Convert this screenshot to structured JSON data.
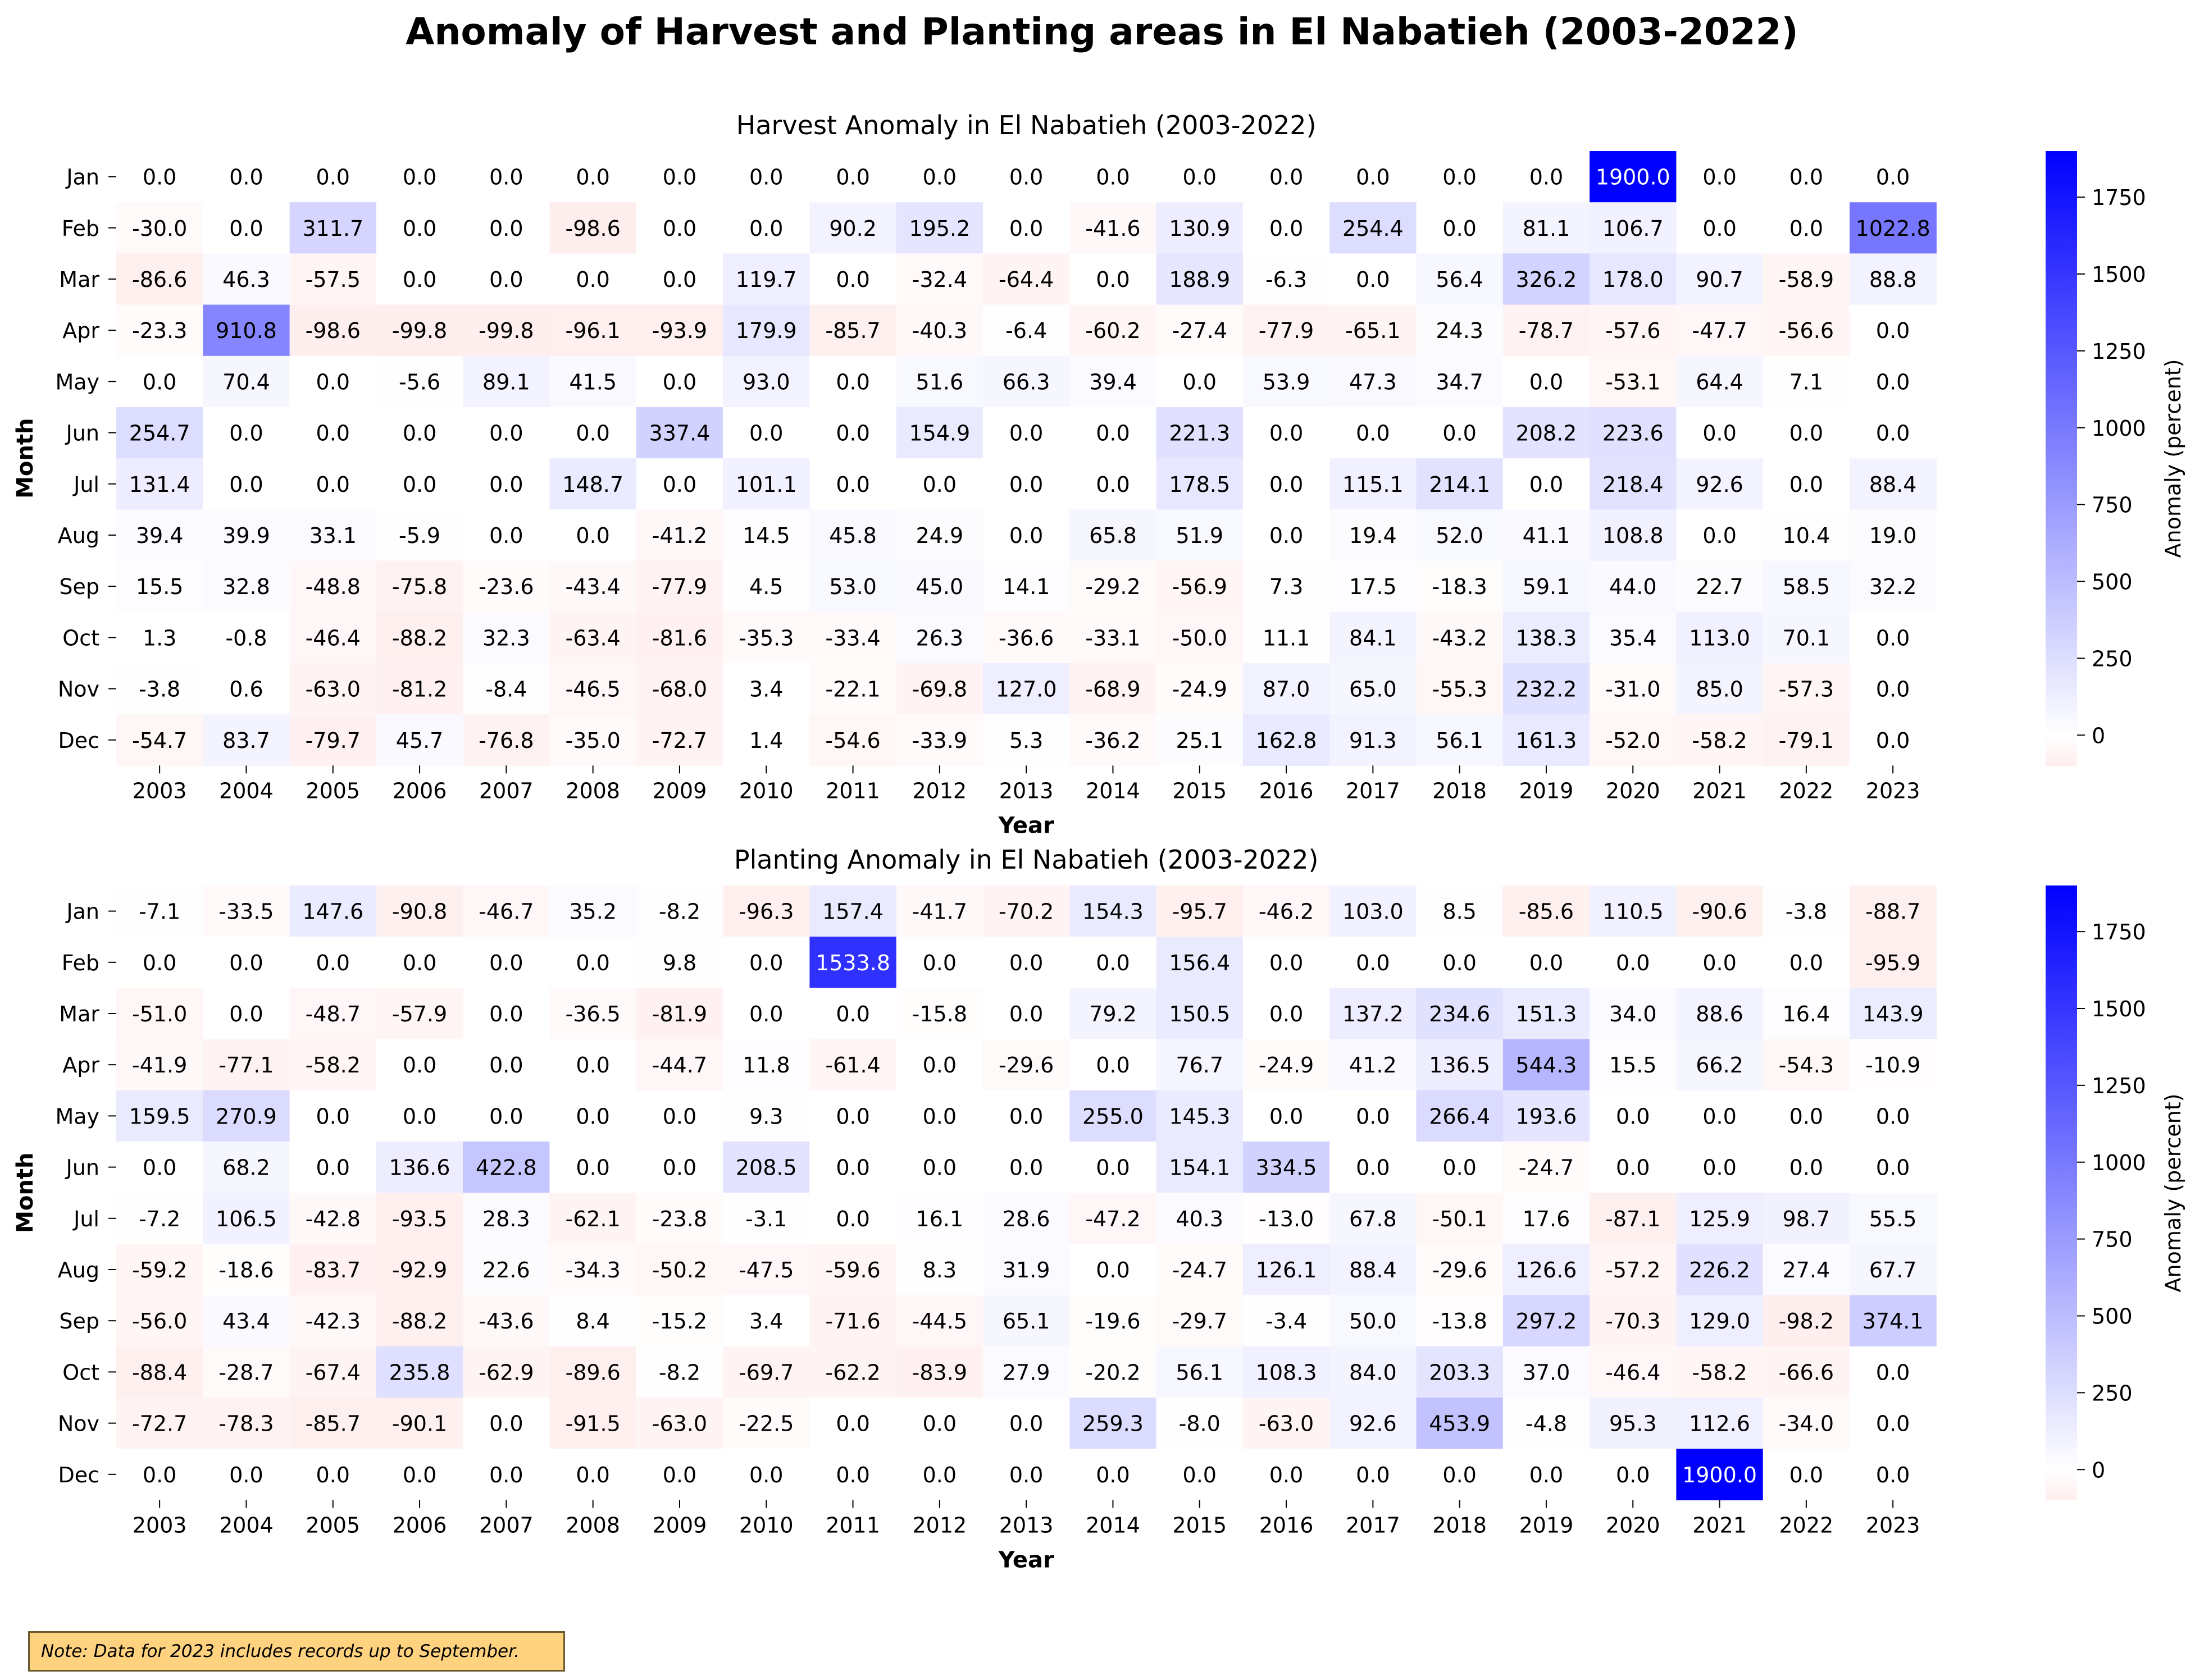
{
  "title": "Anomaly of Harvest and Planting areas in El Nabatieh (2003-2022)",
  "note": "Note: Data for 2023 includes records up to September.",
  "colors": {
    "negative": "#ffeeee",
    "zero": "#ffffff",
    "positive": "#0000ff"
  },
  "chart_data": [
    {
      "type": "heatmap",
      "title": "Harvest Anomaly in El Nabatieh (2003-2022)",
      "xlabel": "Year",
      "ylabel": "Month",
      "colorbar_label": "Anomaly (percent)",
      "colorbar_ticks": [
        "0",
        "250",
        "500",
        "750",
        "1000",
        "1250",
        "1500",
        "1750"
      ],
      "clim": [
        -100,
        1900
      ],
      "x": [
        "2003",
        "2004",
        "2005",
        "2006",
        "2007",
        "2008",
        "2009",
        "2010",
        "2011",
        "2012",
        "2013",
        "2014",
        "2015",
        "2016",
        "2017",
        "2018",
        "2019",
        "2020",
        "2021",
        "2022",
        "2023"
      ],
      "y": [
        "Jan",
        "Feb",
        "Mar",
        "Apr",
        "May",
        "Jun",
        "Jul",
        "Aug",
        "Sep",
        "Oct",
        "Nov",
        "Dec"
      ],
      "values": [
        [
          0.0,
          0.0,
          0.0,
          0.0,
          0.0,
          0.0,
          0.0,
          0.0,
          0.0,
          0.0,
          0.0,
          0.0,
          0.0,
          0.0,
          0.0,
          0.0,
          0.0,
          1900.0,
          0.0,
          0.0,
          0.0
        ],
        [
          -30.0,
          0.0,
          311.7,
          0.0,
          0.0,
          -98.6,
          0.0,
          0.0,
          90.2,
          195.2,
          0.0,
          -41.6,
          130.9,
          0.0,
          254.4,
          0.0,
          81.1,
          106.7,
          0.0,
          0.0,
          1022.8
        ],
        [
          -86.6,
          46.3,
          -57.5,
          0.0,
          0.0,
          0.0,
          0.0,
          119.7,
          0.0,
          -32.4,
          -64.4,
          0.0,
          188.9,
          -6.3,
          0.0,
          56.4,
          326.2,
          178.0,
          90.7,
          -58.9,
          88.8
        ],
        [
          -23.3,
          910.8,
          -98.6,
          -99.8,
          -99.8,
          -96.1,
          -93.9,
          179.9,
          -85.7,
          -40.3,
          -6.4,
          -60.2,
          -27.4,
          -77.9,
          -65.1,
          24.3,
          -78.7,
          -57.6,
          -47.7,
          -56.6,
          0.0
        ],
        [
          0.0,
          70.4,
          0.0,
          -5.6,
          89.1,
          41.5,
          0.0,
          93.0,
          0.0,
          51.6,
          66.3,
          39.4,
          0.0,
          53.9,
          47.3,
          34.7,
          0.0,
          -53.1,
          64.4,
          7.1,
          0.0
        ],
        [
          254.7,
          0.0,
          0.0,
          0.0,
          0.0,
          0.0,
          337.4,
          0.0,
          0.0,
          154.9,
          0.0,
          0.0,
          221.3,
          0.0,
          0.0,
          0.0,
          208.2,
          223.6,
          0.0,
          0.0,
          0.0
        ],
        [
          131.4,
          0.0,
          0.0,
          0.0,
          0.0,
          148.7,
          0.0,
          101.1,
          0.0,
          0.0,
          0.0,
          0.0,
          178.5,
          0.0,
          115.1,
          214.1,
          0.0,
          218.4,
          92.6,
          0.0,
          88.4
        ],
        [
          39.4,
          39.9,
          33.1,
          -5.9,
          0.0,
          0.0,
          -41.2,
          14.5,
          45.8,
          24.9,
          0.0,
          65.8,
          51.9,
          0.0,
          19.4,
          52.0,
          41.1,
          108.8,
          0.0,
          10.4,
          19.0
        ],
        [
          15.5,
          32.8,
          -48.8,
          -75.8,
          -23.6,
          -43.4,
          -77.9,
          4.5,
          53.0,
          45.0,
          14.1,
          -29.2,
          -56.9,
          7.3,
          17.5,
          -18.3,
          59.1,
          44.0,
          22.7,
          58.5,
          32.2
        ],
        [
          1.3,
          -0.8,
          -46.4,
          -88.2,
          32.3,
          -63.4,
          -81.6,
          -35.3,
          -33.4,
          26.3,
          -36.6,
          -33.1,
          -50.0,
          11.1,
          84.1,
          -43.2,
          138.3,
          35.4,
          113.0,
          70.1,
          0.0
        ],
        [
          -3.8,
          0.6,
          -63.0,
          -81.2,
          -8.4,
          -46.5,
          -68.0,
          3.4,
          -22.1,
          -69.8,
          127.0,
          -68.9,
          -24.9,
          87.0,
          65.0,
          -55.3,
          232.2,
          -31.0,
          85.0,
          -57.3,
          0.0
        ],
        [
          -54.7,
          83.7,
          -79.7,
          45.7,
          -76.8,
          -35.0,
          -72.7,
          1.4,
          -54.6,
          -33.9,
          5.3,
          -36.2,
          25.1,
          162.8,
          91.3,
          56.1,
          161.3,
          -52.0,
          -58.2,
          -79.1,
          0.0
        ]
      ]
    },
    {
      "type": "heatmap",
      "title": "Planting Anomaly in El Nabatieh (2003-2022)",
      "xlabel": "Year",
      "ylabel": "Month",
      "colorbar_label": "Anomaly (percent)",
      "colorbar_ticks": [
        "0",
        "250",
        "500",
        "750",
        "1000",
        "1250",
        "1500",
        "1750"
      ],
      "clim": [
        -100,
        1900
      ],
      "x": [
        "2003",
        "2004",
        "2005",
        "2006",
        "2007",
        "2008",
        "2009",
        "2010",
        "2011",
        "2012",
        "2013",
        "2014",
        "2015",
        "2016",
        "2017",
        "2018",
        "2019",
        "2020",
        "2021",
        "2022",
        "2023"
      ],
      "y": [
        "Jan",
        "Feb",
        "Mar",
        "Apr",
        "May",
        "Jun",
        "Jul",
        "Aug",
        "Sep",
        "Oct",
        "Nov",
        "Dec"
      ],
      "values": [
        [
          -7.1,
          -33.5,
          147.6,
          -90.8,
          -46.7,
          35.2,
          -8.2,
          -96.3,
          157.4,
          -41.7,
          -70.2,
          154.3,
          -95.7,
          -46.2,
          103.0,
          8.5,
          -85.6,
          110.5,
          -90.6,
          -3.8,
          -88.7
        ],
        [
          0.0,
          0.0,
          0.0,
          0.0,
          0.0,
          0.0,
          9.8,
          0.0,
          1533.8,
          0.0,
          0.0,
          0.0,
          156.4,
          0.0,
          0.0,
          0.0,
          0.0,
          0.0,
          0.0,
          0.0,
          -95.9
        ],
        [
          -51.0,
          0.0,
          -48.7,
          -57.9,
          0.0,
          -36.5,
          -81.9,
          0.0,
          0.0,
          -15.8,
          0.0,
          79.2,
          150.5,
          0.0,
          137.2,
          234.6,
          151.3,
          34.0,
          88.6,
          16.4,
          143.9
        ],
        [
          -41.9,
          -77.1,
          -58.2,
          0.0,
          0.0,
          0.0,
          -44.7,
          11.8,
          -61.4,
          0.0,
          -29.6,
          0.0,
          76.7,
          -24.9,
          41.2,
          136.5,
          544.3,
          15.5,
          66.2,
          -54.3,
          -10.9
        ],
        [
          159.5,
          270.9,
          0.0,
          0.0,
          0.0,
          0.0,
          0.0,
          9.3,
          0.0,
          0.0,
          0.0,
          255.0,
          145.3,
          0.0,
          0.0,
          266.4,
          193.6,
          0.0,
          0.0,
          0.0,
          0.0
        ],
        [
          0.0,
          68.2,
          0.0,
          136.6,
          422.8,
          0.0,
          0.0,
          208.5,
          0.0,
          0.0,
          0.0,
          0.0,
          154.1,
          334.5,
          0.0,
          0.0,
          -24.7,
          0.0,
          0.0,
          0.0,
          0.0
        ],
        [
          -7.2,
          106.5,
          -42.8,
          -93.5,
          28.3,
          -62.1,
          -23.8,
          -3.1,
          0.0,
          16.1,
          28.6,
          -47.2,
          40.3,
          -13.0,
          67.8,
          -50.1,
          17.6,
          -87.1,
          125.9,
          98.7,
          55.5
        ],
        [
          -59.2,
          -18.6,
          -83.7,
          -92.9,
          22.6,
          -34.3,
          -50.2,
          -47.5,
          -59.6,
          8.3,
          31.9,
          0.0,
          -24.7,
          126.1,
          88.4,
          -29.6,
          126.6,
          -57.2,
          226.2,
          27.4,
          67.7
        ],
        [
          -56.0,
          43.4,
          -42.3,
          -88.2,
          -43.6,
          8.4,
          -15.2,
          3.4,
          -71.6,
          -44.5,
          65.1,
          -19.6,
          -29.7,
          -3.4,
          50.0,
          -13.8,
          297.2,
          -70.3,
          129.0,
          -98.2,
          374.1
        ],
        [
          -88.4,
          -28.7,
          -67.4,
          235.8,
          -62.9,
          -89.6,
          -8.2,
          -69.7,
          -62.2,
          -83.9,
          27.9,
          -20.2,
          56.1,
          108.3,
          84.0,
          203.3,
          37.0,
          -46.4,
          -58.2,
          -66.6,
          0.0
        ],
        [
          -72.7,
          -78.3,
          -85.7,
          -90.1,
          0.0,
          -91.5,
          -63.0,
          -22.5,
          0.0,
          0.0,
          0.0,
          259.3,
          -8.0,
          -63.0,
          92.6,
          453.9,
          -4.8,
          95.3,
          112.6,
          -34.0,
          0.0
        ],
        [
          0.0,
          0.0,
          0.0,
          0.0,
          0.0,
          0.0,
          0.0,
          0.0,
          0.0,
          0.0,
          0.0,
          0.0,
          0.0,
          0.0,
          0.0,
          0.0,
          0.0,
          0.0,
          1900.0,
          0.0,
          0.0
        ]
      ]
    }
  ]
}
